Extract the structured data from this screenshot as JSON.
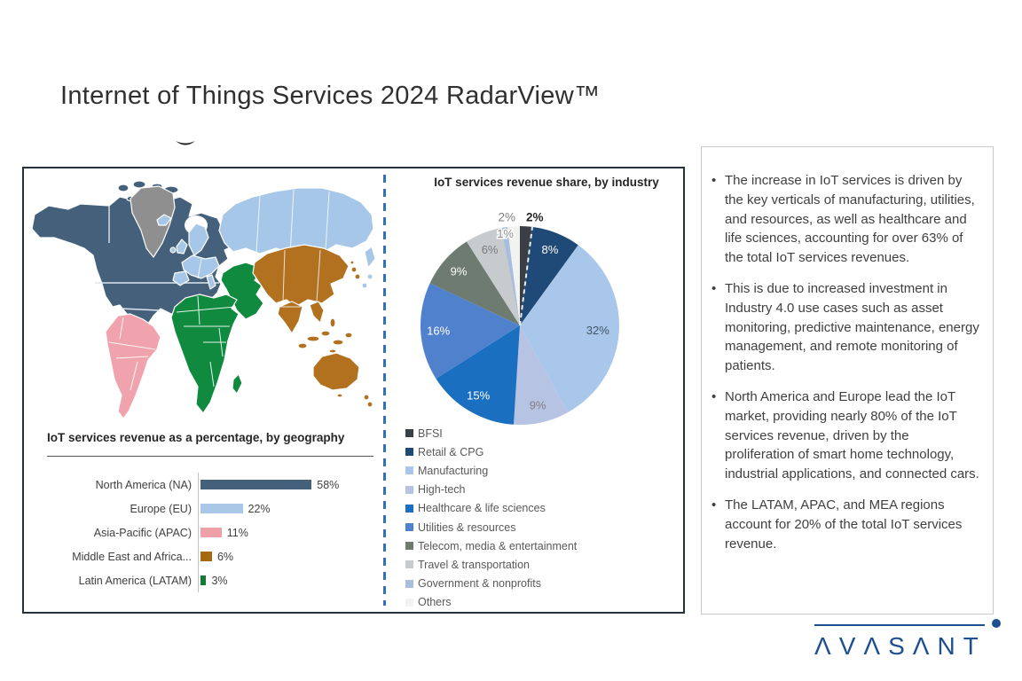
{
  "page": {
    "title": "Internet of Things Services 2024 RadarView™"
  },
  "chart_data": [
    {
      "type": "bar",
      "orientation": "horizontal",
      "title": "IoT services revenue as a percentage, by geography",
      "categories": [
        "North America (NA)",
        "Europe (EU)",
        "Asia-Pacific (APAC)",
        "Middle East and Africa...",
        "Latin America (LATAM)"
      ],
      "values": [
        58,
        22,
        11,
        6,
        3
      ],
      "value_labels": [
        "58%",
        "22%",
        "11%",
        "6%",
        "3%"
      ],
      "colors": [
        "#45607a",
        "#a9c8e8",
        "#ef9fa8",
        "#a5690f",
        "#157a35"
      ],
      "xlim": [
        0,
        60
      ],
      "grid": false
    },
    {
      "type": "pie",
      "title": "IoT services revenue share, by industry",
      "start_angle_deg": 0,
      "direction": "clockwise",
      "legend_position": "bottom-left",
      "segments": [
        {
          "label": "BFSI",
          "value": 2,
          "pct_label": "2%",
          "color": "#3a3f44",
          "label_pos": "out",
          "label_color": "#262626",
          "label_bold": true,
          "boundary_dashed": true
        },
        {
          "label": "Retail & CPG",
          "value": 8,
          "pct_label": "8%",
          "color": "#1f4977",
          "label_pos": "in",
          "label_color": "#ffffff"
        },
        {
          "label": "Manufacturing",
          "value": 32,
          "pct_label": "32%",
          "color": "#a9c7ea",
          "label_pos": "in",
          "label_color": "#44546a"
        },
        {
          "label": "High-tech",
          "value": 9,
          "pct_label": "9%",
          "color": "#b6c3e2",
          "label_pos": "in",
          "label_color": "#808080"
        },
        {
          "label": "Healthcare & life sciences",
          "value": 15,
          "pct_label": "15%",
          "color": "#1b6fc0",
          "label_pos": "in",
          "label_color": "#ffffff"
        },
        {
          "label": "Utilities & resources",
          "value": 16,
          "pct_label": "16%",
          "color": "#4f81cd",
          "label_pos": "in",
          "label_color": "#ffffff"
        },
        {
          "label": "Telecom, media & entertainment",
          "value": 9,
          "pct_label": "9%",
          "color": "#6e7b70",
          "label_pos": "in",
          "label_color": "#ffffff"
        },
        {
          "label": "Travel & transportation",
          "value": 6,
          "pct_label": "6%",
          "color": "#c7cbcd",
          "label_pos": "in",
          "label_color": "#7a7a7a"
        },
        {
          "label": "Government & nonprofits",
          "value": 1,
          "pct_label": "1%",
          "color": "#a9bedc",
          "label_pos": "rim",
          "label_color": "#8c8c8c",
          "halo": true
        },
        {
          "label": "Others",
          "value": 2,
          "pct_label": "2%",
          "color": "#f2f2f0",
          "label_pos": "out",
          "label_color": "#7f7f7f"
        }
      ]
    }
  ],
  "map": {
    "region_colors": {
      "north_america": "#45607a",
      "greenland": "#8f8f8f",
      "europe_russia": "#a6c7e8",
      "middle_east_africa": "#0f8a3e",
      "asia_pacific": "#b2711f",
      "latin_america": "#f0a3ac"
    }
  },
  "insights": {
    "bullets": [
      "The increase in IoT services is driven by the key verticals of manufacturing, utilities, and resources, as well as healthcare and life sciences, accounting for over 63% of the total IoT services revenues.",
      "This is due to increased investment in Industry 4.0 use cases such as asset monitoring, predictive maintenance, energy management, and remote monitoring of patients.",
      "North America and Europe lead the IoT market, providing nearly 80% of the IoT services revenue, driven by the proliferation of smart home technology, industrial applications, and connected cars.",
      "The LATAM, APAC, and MEA regions account for 20% of the total IoT services revenue."
    ]
  },
  "logo": {
    "brand": "AVASANT",
    "display": "ΛVΛSΛNT",
    "color": "#1d4f91"
  }
}
